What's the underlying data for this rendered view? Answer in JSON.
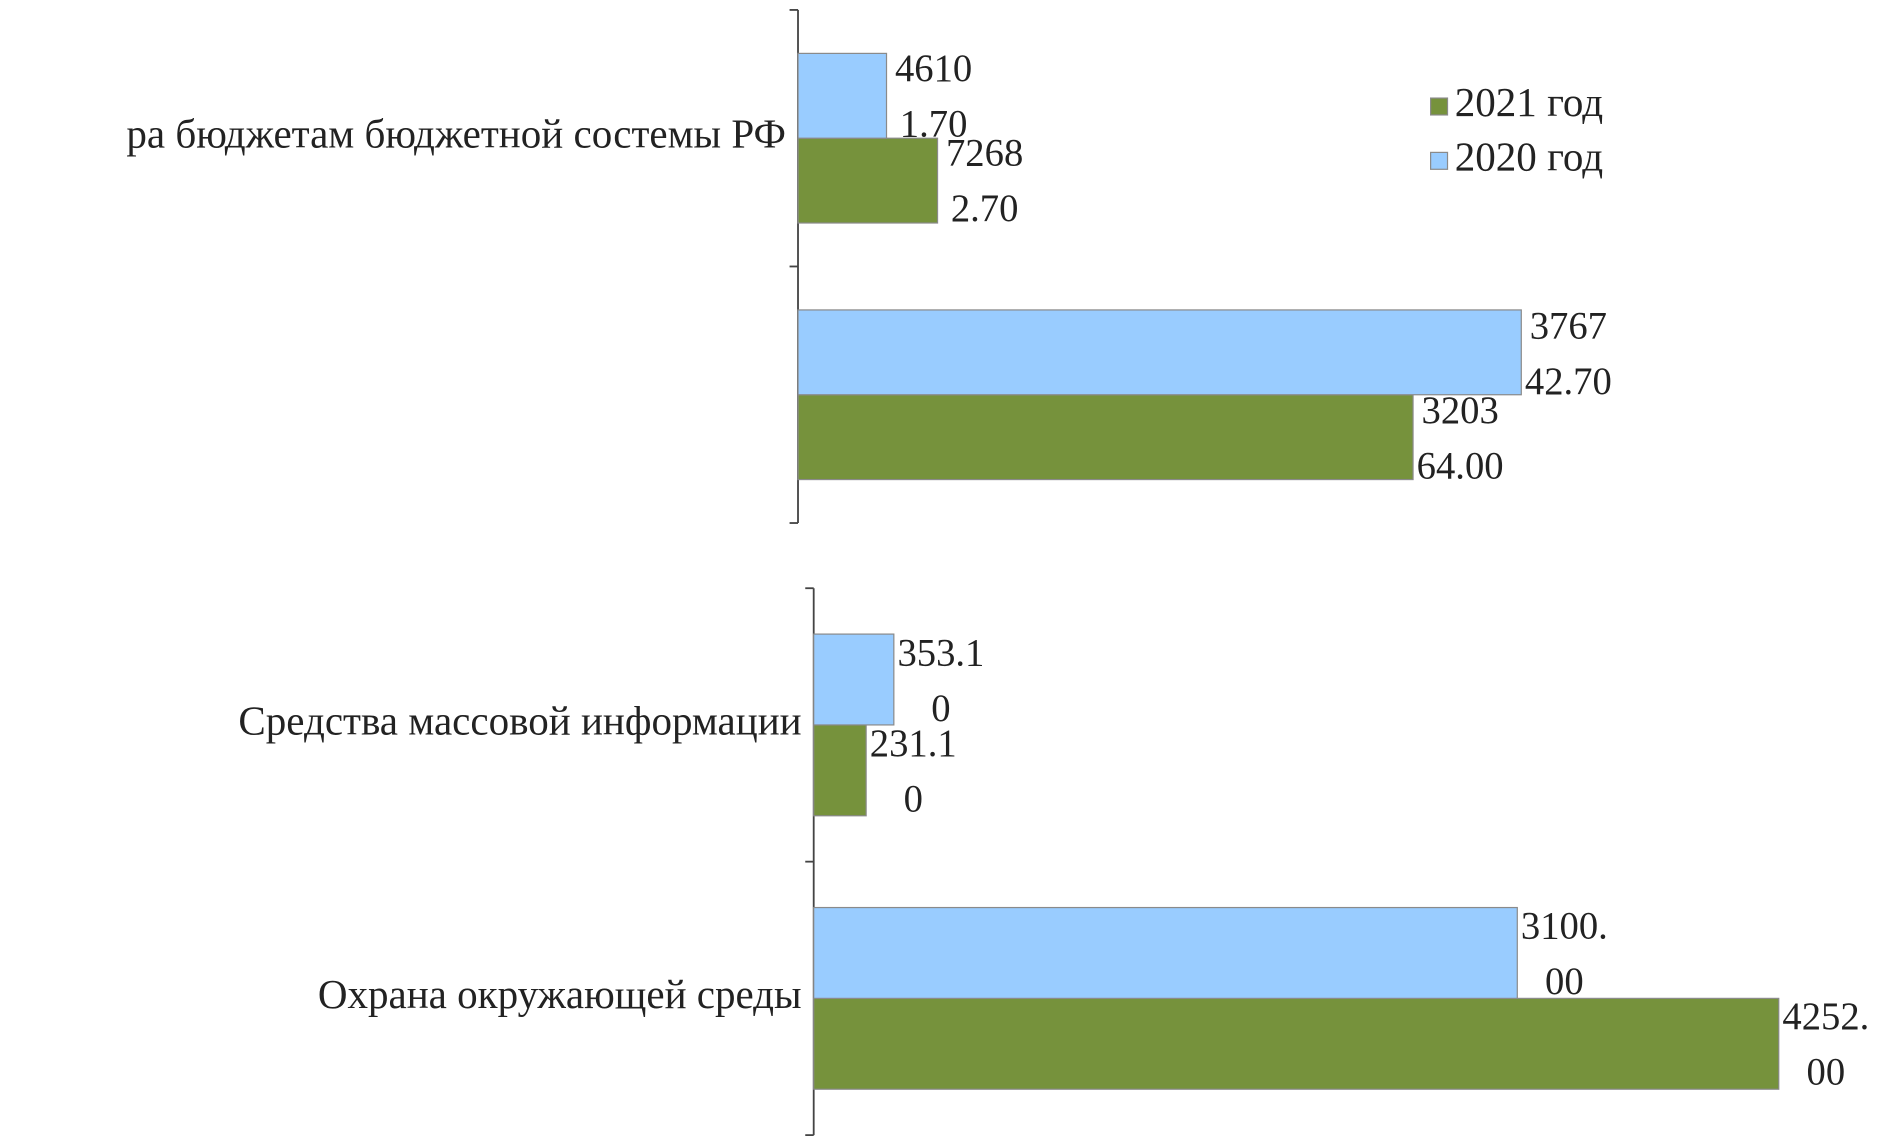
{
  "chart_data": [
    {
      "type": "bar",
      "orientation": "horizontal",
      "categories": [
        "ра бюджетам бюджетной состемы РФ",
        null
      ],
      "series": [
        {
          "name": "2021 год",
          "color": "#76923c",
          "values": [
            72682.7,
            320364.0
          ],
          "value_labels": [
            "72682.70",
            "320364.00"
          ]
        },
        {
          "name": "2020 год",
          "color": "#99ccff",
          "values": [
            46101.7,
            376742.7
          ],
          "value_labels": [
            "46101.70",
            "376742.70"
          ]
        }
      ],
      "xlim": [
        0,
        471000
      ],
      "legend": "upper right"
    },
    {
      "type": "bar",
      "orientation": "horizontal",
      "categories": [
        "Средства массовой информации",
        "Охрана окружающей среды"
      ],
      "series": [
        {
          "name": "2021 год",
          "color": "#76923c",
          "values": [
            231.1,
            4252.0
          ],
          "value_labels": [
            "231.10",
            "4252.00"
          ]
        },
        {
          "name": "2020 год",
          "color": "#99ccff",
          "values": [
            353.1,
            3100.0
          ],
          "value_labels": [
            "353.10",
            "3100.00"
          ]
        }
      ],
      "xlim": [
        0,
        4500
      ]
    }
  ]
}
